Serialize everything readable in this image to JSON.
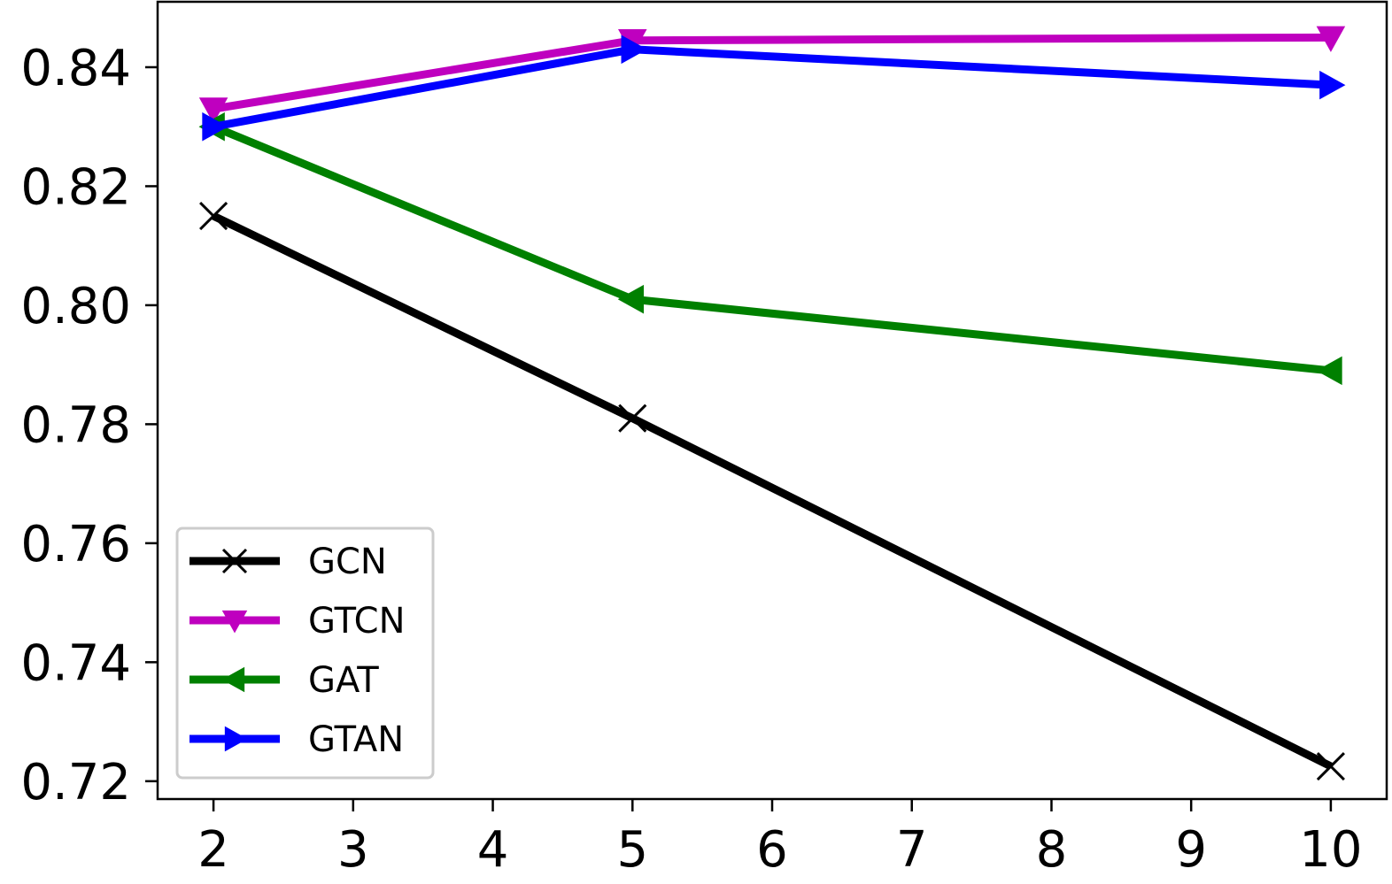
{
  "chart_data": {
    "type": "line",
    "title": "",
    "xlabel": "",
    "ylabel": "",
    "x": [
      2,
      5,
      10
    ],
    "xlim": [
      1.6,
      10.4
    ],
    "ylim": [
      0.717,
      0.851
    ],
    "x_ticks": [
      2,
      3,
      4,
      5,
      6,
      7,
      8,
      9,
      10
    ],
    "y_ticks": [
      0.72,
      0.74,
      0.76,
      0.78,
      0.8,
      0.82,
      0.84
    ],
    "x_tick_labels": [
      "2",
      "3",
      "4",
      "5",
      "6",
      "7",
      "8",
      "9",
      "10"
    ],
    "y_tick_labels": [
      "0.72",
      "0.74",
      "0.76",
      "0.78",
      "0.80",
      "0.82",
      "0.84"
    ],
    "grid": false,
    "legend_position": "lower-left",
    "series": [
      {
        "name": "GCN",
        "values": [
          0.815,
          0.781,
          0.7225
        ],
        "color": "#000000",
        "marker": "x"
      },
      {
        "name": "GTCN",
        "values": [
          0.833,
          0.8445,
          0.845
        ],
        "color": "#bf00bf",
        "marker": "triangle-down"
      },
      {
        "name": "GAT",
        "values": [
          0.83,
          0.801,
          0.789
        ],
        "color": "#008000",
        "marker": "triangle-left"
      },
      {
        "name": "GTAN",
        "values": [
          0.83,
          0.843,
          0.837
        ],
        "color": "#0000ff",
        "marker": "triangle-right"
      }
    ]
  }
}
